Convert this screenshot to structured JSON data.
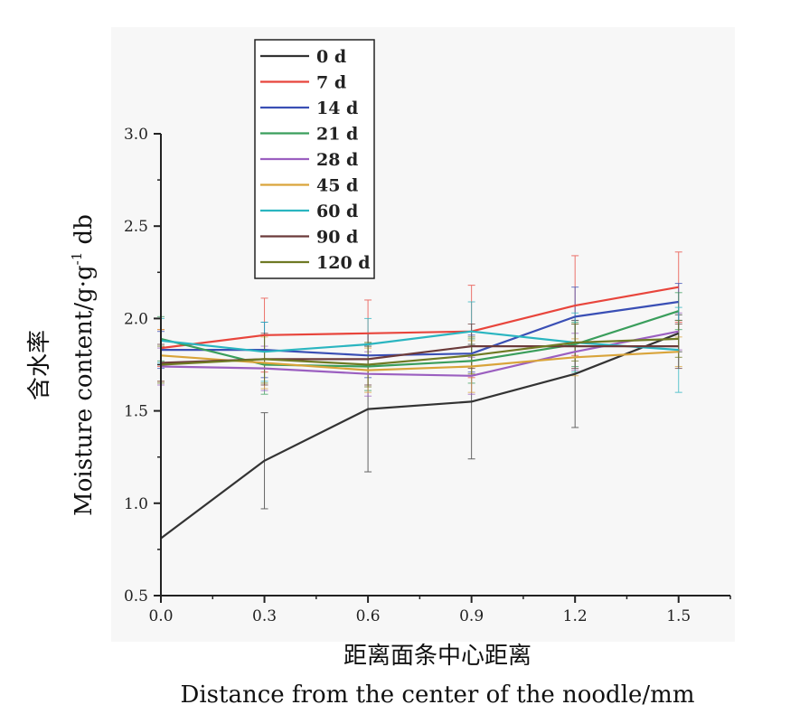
{
  "chart_data": {
    "type": "line",
    "x": [
      0.0,
      0.3,
      0.6,
      0.9,
      1.2,
      1.5
    ],
    "x_tick_labels": [
      "0.0",
      "0.3",
      "0.6",
      "0.9",
      "1.2",
      "1.5"
    ],
    "y_tick_labels": [
      "0.5",
      "1.0",
      "1.5",
      "2.0",
      "2.5",
      "3.0"
    ],
    "xlim": [
      0.0,
      1.65
    ],
    "ylim": [
      0.5,
      3.0
    ],
    "xlabel_cn": "距离面条中心距离",
    "xlabel": "Distance from the center of the noodle/mm",
    "ylabel_cn": "含水率",
    "ylabel": "Moisture content/g·g",
    "ylabel_sup": "-1",
    "ylabel_suffix": " db",
    "legend_position": "top-left",
    "grid": false,
    "series": [
      {
        "name": "0 d",
        "color": "#333333",
        "values": [
          0.81,
          1.23,
          1.51,
          1.55,
          1.7,
          1.92
        ],
        "err": [
          0,
          0.26,
          0.34,
          0.31,
          0.29,
          0.1
        ]
      },
      {
        "name": "7 d",
        "color": "#e8453c",
        "values": [
          1.84,
          1.91,
          1.92,
          1.93,
          2.07,
          2.17
        ],
        "err": [
          0.1,
          0.2,
          0.18,
          0.25,
          0.27,
          0.19
        ]
      },
      {
        "name": "14 d",
        "color": "#3a4fb5",
        "values": [
          1.83,
          1.83,
          1.8,
          1.81,
          2.01,
          2.09
        ],
        "err": [
          0.1,
          0.15,
          0.12,
          0.1,
          0.16,
          0.1
        ]
      },
      {
        "name": "21 d",
        "color": "#3a9e5c",
        "values": [
          1.89,
          1.75,
          1.74,
          1.77,
          1.86,
          2.04
        ],
        "err": [
          0.12,
          0.16,
          0.13,
          0.12,
          0.12,
          0.1
        ]
      },
      {
        "name": "28 d",
        "color": "#9b5fc0",
        "values": [
          1.74,
          1.73,
          1.7,
          1.69,
          1.82,
          1.93
        ],
        "err": [
          0.1,
          0.12,
          0.12,
          0.1,
          0.1,
          0.1
        ]
      },
      {
        "name": "45 d",
        "color": "#d9a43a",
        "values": [
          1.8,
          1.76,
          1.72,
          1.74,
          1.79,
          1.82
        ],
        "err": [
          0.14,
          0.14,
          0.12,
          0.14,
          0.1,
          0.08
        ]
      },
      {
        "name": "60 d",
        "color": "#2ab5c0",
        "values": [
          1.88,
          1.82,
          1.86,
          1.93,
          1.87,
          1.83
        ],
        "err": [
          0.12,
          0.16,
          0.14,
          0.16,
          0.16,
          0.23
        ]
      },
      {
        "name": "90 d",
        "color": "#6b3a3a",
        "values": [
          1.76,
          1.78,
          1.78,
          1.85,
          1.85,
          1.85
        ],
        "err": [
          0.1,
          0.14,
          0.14,
          0.12,
          0.12,
          0.12
        ]
      },
      {
        "name": "120 d",
        "color": "#6f7a24",
        "values": [
          1.75,
          1.78,
          1.75,
          1.8,
          1.87,
          1.89
        ],
        "err": [
          0.1,
          0.13,
          0.12,
          0.1,
          0.1,
          0.1
        ]
      }
    ]
  }
}
